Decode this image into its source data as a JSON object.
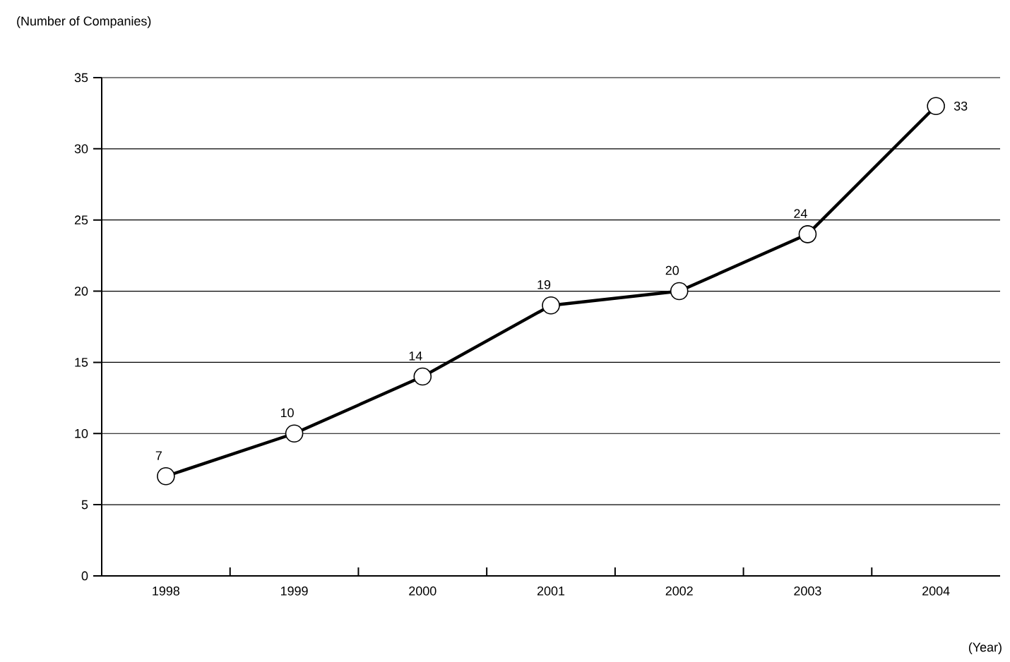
{
  "chart_data": {
    "type": "line",
    "ylabel": "(Number of Companies)",
    "xlabel": "(Year)",
    "categories": [
      "1998",
      "1999",
      "2000",
      "2001",
      "2002",
      "2003",
      "2004"
    ],
    "values": [
      7,
      10,
      14,
      19,
      20,
      24,
      33
    ],
    "color": "#000000",
    "marker": "circle",
    "line_style": "solid",
    "data_labels": true,
    "grid": "y",
    "ylim": [
      0,
      35
    ],
    "yticks": [
      0,
      5,
      10,
      15,
      20,
      25,
      30,
      35
    ]
  }
}
